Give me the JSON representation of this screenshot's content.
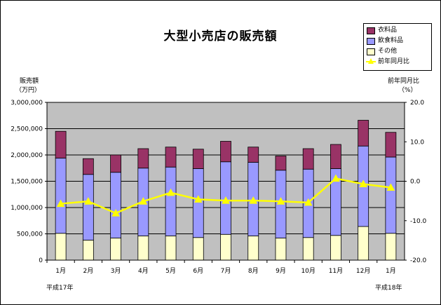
{
  "chart_data": {
    "type": "bar+line",
    "title": "大型小売店の販売額",
    "categories": [
      "1月",
      "2月",
      "3月",
      "4月",
      "5月",
      "6月",
      "7月",
      "8月",
      "9月",
      "10月",
      "11月",
      "12月",
      "1月"
    ],
    "year_labels": {
      "start": "平成17年",
      "end": "平成18年"
    },
    "left_axis": {
      "label_line1": "販売額",
      "label_line2": "（万円）",
      "ylim": [
        0,
        3000000
      ],
      "ticks": [
        "0",
        "500,000",
        "1,000,000",
        "1,500,000",
        "2,000,000",
        "2,500,000",
        "3,000,000"
      ]
    },
    "right_axis": {
      "label_line1": "前年同月比",
      "label_line2": "（%）",
      "ylim": [
        -20.0,
        20.0
      ],
      "ticks": [
        "-20.0",
        "-10.0",
        "0.0",
        "10.0",
        "20.0"
      ]
    },
    "series": [
      {
        "name": "その他",
        "kind": "stacked-bar",
        "color": "#ffffcc",
        "values": [
          510000,
          380000,
          420000,
          460000,
          460000,
          430000,
          490000,
          460000,
          420000,
          430000,
          470000,
          640000,
          510000
        ]
      },
      {
        "name": "飲食料品",
        "kind": "stacked-bar",
        "color": "#9999ff",
        "values": [
          1430000,
          1250000,
          1250000,
          1290000,
          1310000,
          1310000,
          1380000,
          1400000,
          1290000,
          1300000,
          1270000,
          1530000,
          1450000
        ]
      },
      {
        "name": "衣料品",
        "kind": "stacked-bar",
        "color": "#993366",
        "values": [
          510000,
          300000,
          330000,
          370000,
          380000,
          370000,
          390000,
          290000,
          270000,
          390000,
          460000,
          490000,
          470000
        ]
      },
      {
        "name": "前年同月比",
        "kind": "line",
        "axis": "right",
        "color": "#ffff00",
        "values": [
          -5.7,
          -5.1,
          -8.1,
          -5.1,
          -2.9,
          -4.6,
          -4.9,
          -4.9,
          -5.1,
          -5.4,
          0.7,
          -0.7,
          -1.6
        ]
      }
    ]
  }
}
